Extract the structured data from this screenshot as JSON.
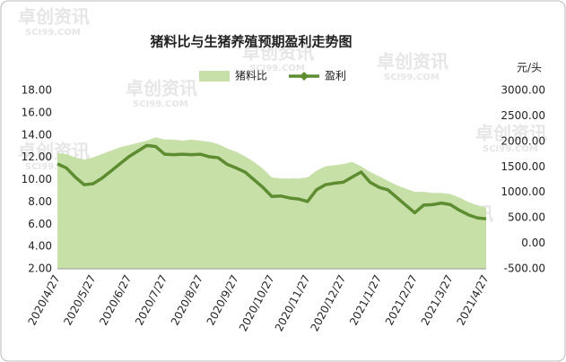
{
  "chart_data": {
    "type": "area-line",
    "title": "猪料比与生猪养殖预期盈利走势图",
    "y2_unit": "元/头",
    "watermark": [
      "卓创资讯",
      "SCI99.COM"
    ],
    "categories": [
      "2020/4/27",
      null,
      null,
      null,
      "2020/5/27",
      null,
      null,
      null,
      "2020/6/27",
      null,
      null,
      null,
      "2020/7/27",
      null,
      null,
      null,
      "2020/8/27",
      null,
      null,
      null,
      "2020/9/27",
      null,
      null,
      null,
      "2020/10/27",
      null,
      null,
      null,
      "2020/11/27",
      null,
      null,
      null,
      "2020/12/27",
      null,
      null,
      null,
      "2021/1/27",
      null,
      null,
      null,
      "2021/2/27",
      null,
      null,
      null,
      "2021/3/27",
      null,
      null,
      null,
      "2021/4/27"
    ],
    "series": [
      {
        "name": "猪料比",
        "type": "area",
        "axis": "y",
        "color": "#c6e0a8",
        "values": [
          12.4,
          12.3,
          12.0,
          11.8,
          12.0,
          12.3,
          12.6,
          12.9,
          13.1,
          13.3,
          13.5,
          13.8,
          13.6,
          13.6,
          13.5,
          13.6,
          13.5,
          13.4,
          13.2,
          12.8,
          12.5,
          12.1,
          11.6,
          11.0,
          10.2,
          10.1,
          10.1,
          10.1,
          10.2,
          10.8,
          11.2,
          11.3,
          11.4,
          11.6,
          11.2,
          10.7,
          10.3,
          9.9,
          9.5,
          9.2,
          8.9,
          8.9,
          8.8,
          8.8,
          8.7,
          8.4,
          8.0,
          7.7,
          7.5
        ]
      },
      {
        "name": "盈利",
        "type": "line",
        "axis": "y2",
        "color": "#5e8c31",
        "values": [
          1560,
          1480,
          1300,
          1150,
          1170,
          1280,
          1420,
          1560,
          1700,
          1810,
          1920,
          1900,
          1750,
          1740,
          1750,
          1740,
          1750,
          1700,
          1680,
          1550,
          1480,
          1400,
          1250,
          1100,
          920,
          930,
          890,
          870,
          820,
          1050,
          1150,
          1180,
          1200,
          1300,
          1400,
          1200,
          1100,
          1050,
          900,
          750,
          600,
          750,
          760,
          790,
          760,
          650,
          560,
          500,
          480
        ]
      }
    ],
    "ylim": [
      2,
      18
    ],
    "yticks": [
      {
        "value": 2,
        "label": "2.00"
      },
      {
        "value": 4,
        "label": "4.00"
      },
      {
        "value": 6,
        "label": "6.00"
      },
      {
        "value": 8,
        "label": "8.00"
      },
      {
        "value": 10,
        "label": "10.00"
      },
      {
        "value": 12,
        "label": "12.00"
      },
      {
        "value": 14,
        "label": "14.00"
      },
      {
        "value": 16,
        "label": "16.00"
      },
      {
        "value": 18,
        "label": "18.00"
      }
    ],
    "y2lim": [
      -500,
      3000
    ],
    "y2ticks": [
      {
        "value": -500,
        "label": "-500.00"
      },
      {
        "value": 0,
        "label": "0.00"
      },
      {
        "value": 500,
        "label": "500.00"
      },
      {
        "value": 1000,
        "label": "1000.00"
      },
      {
        "value": 1500,
        "label": "1500.00"
      },
      {
        "value": 2000,
        "label": "2000.00"
      },
      {
        "value": 2500,
        "label": "2500.00"
      },
      {
        "value": 3000,
        "label": "3000.00"
      }
    ],
    "grid": false,
    "legend": "top"
  }
}
